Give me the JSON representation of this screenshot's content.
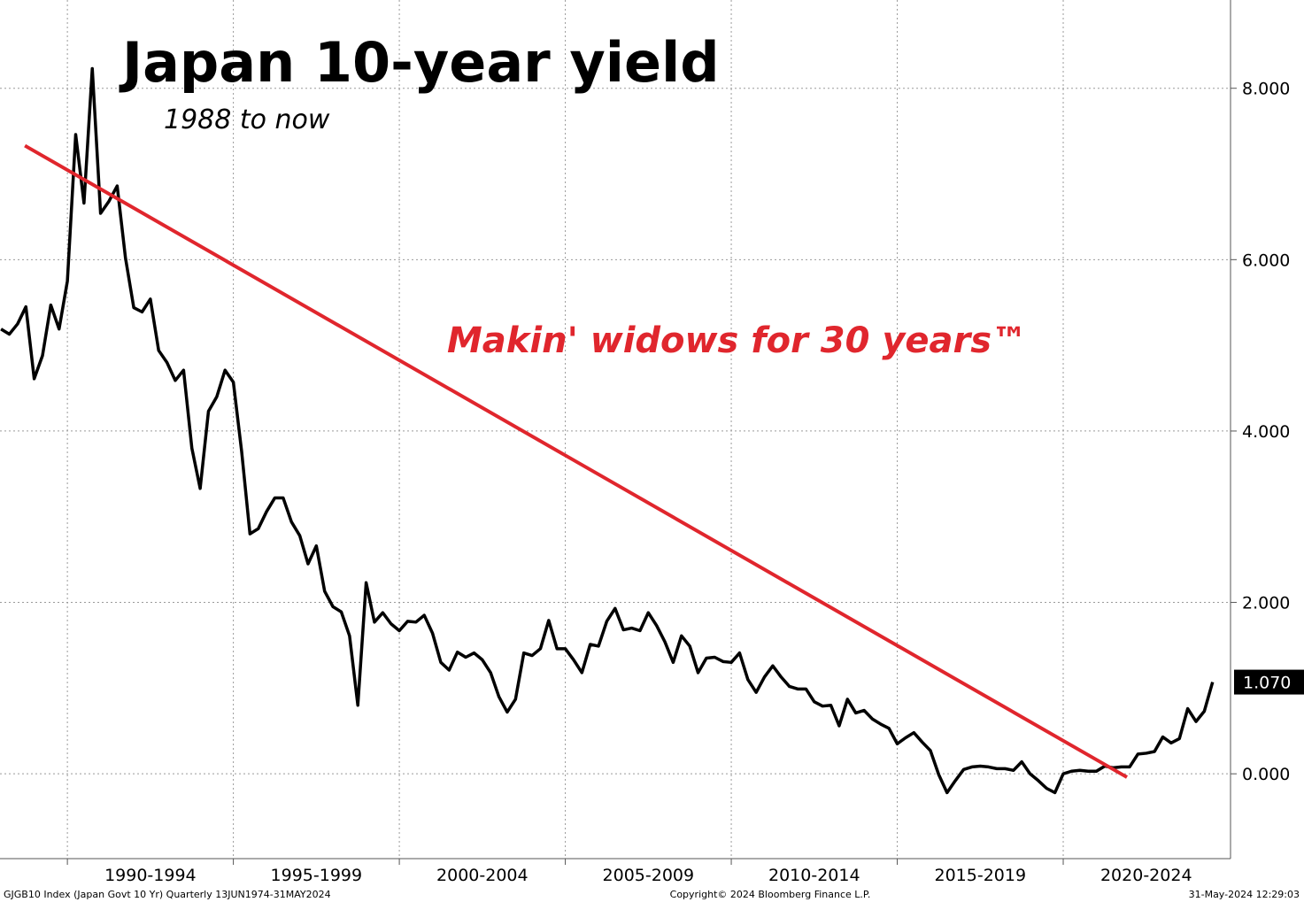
{
  "chart_data": {
    "type": "line",
    "title": "Japan 10-year yield",
    "subtitle": "1988 to now",
    "annotation": "Makin' widows for 30 years™",
    "footer_left": "GJGB10 Index (Japan Govt 10 Yr)  Quarterly 13JUN1974-31MAY2024",
    "footer_center": "Copyright© 2024 Bloomberg Finance L.P.",
    "footer_right": "31-May-2024 12:29:03",
    "xlim": [
      1987.97,
      2025.04
    ],
    "ylim": [
      -0.99,
      9.03
    ],
    "xticks": [
      {
        "value": 1990,
        "label": "1990-1994"
      },
      {
        "value": 1995,
        "label": "1995-1999"
      },
      {
        "value": 2000,
        "label": "2000-2004"
      },
      {
        "value": 2005,
        "label": "2005-2009"
      },
      {
        "value": 2010,
        "label": "2010-2014"
      },
      {
        "value": 2015,
        "label": "2015-2019"
      },
      {
        "value": 2020,
        "label": "2020-2024"
      }
    ],
    "yticks": [
      {
        "value": 0,
        "label": "0.000"
      },
      {
        "value": 2,
        "label": "2.000"
      },
      {
        "value": 4,
        "label": "4.000"
      },
      {
        "value": 6,
        "label": "6.000"
      },
      {
        "value": 8,
        "label": "8.000"
      }
    ],
    "grid": true,
    "x": [
      1988,
      1988.25,
      1988.5,
      1988.75,
      1989,
      1989.25,
      1989.5,
      1989.75,
      1990,
      1990.25,
      1990.5,
      1990.75,
      1991,
      1991.25,
      1991.5,
      1991.75,
      1992,
      1992.25,
      1992.5,
      1992.75,
      1993,
      1993.25,
      1993.5,
      1993.75,
      1994,
      1994.25,
      1994.5,
      1994.75,
      1995,
      1995.25,
      1995.5,
      1995.75,
      1996,
      1996.25,
      1996.5,
      1996.75,
      1997,
      1997.25,
      1997.5,
      1997.75,
      1998,
      1998.25,
      1998.5,
      1998.75,
      1999,
      1999.25,
      1999.5,
      1999.75,
      2000,
      2000.25,
      2000.5,
      2000.75,
      2001,
      2001.25,
      2001.5,
      2001.75,
      2002,
      2002.25,
      2002.5,
      2002.75,
      2003,
      2003.25,
      2003.5,
      2003.75,
      2004,
      2004.25,
      2004.5,
      2004.75,
      2005,
      2005.25,
      2005.5,
      2005.75,
      2006,
      2006.25,
      2006.5,
      2006.75,
      2007,
      2007.25,
      2007.5,
      2007.75,
      2008,
      2008.25,
      2008.5,
      2008.75,
      2009,
      2009.25,
      2009.5,
      2009.75,
      2010,
      2010.25,
      2010.5,
      2010.75,
      2011,
      2011.25,
      2011.5,
      2011.75,
      2012,
      2012.25,
      2012.5,
      2012.75,
      2013,
      2013.25,
      2013.5,
      2013.75,
      2014,
      2014.25,
      2014.5,
      2014.75,
      2015,
      2015.25,
      2015.5,
      2015.75,
      2016,
      2016.25,
      2016.5,
      2016.75,
      2017,
      2017.25,
      2017.5,
      2017.75,
      2018,
      2018.25,
      2018.5,
      2018.75,
      2019,
      2019.25,
      2019.5,
      2019.75,
      2020,
      2020.25,
      2020.5,
      2020.75,
      2021,
      2021.25,
      2021.5,
      2021.75,
      2022,
      2022.25,
      2022.5,
      2022.75,
      2023,
      2023.25,
      2023.5,
      2023.75,
      2024,
      2024.25,
      2024.5
    ],
    "series": [
      {
        "name": "GJGB10 Index",
        "color": "#000000",
        "last_value_label": "1.070",
        "values": [
          5.19,
          5.13,
          5.25,
          5.45,
          4.61,
          4.88,
          5.47,
          5.19,
          5.75,
          7.46,
          6.66,
          8.23,
          6.54,
          6.68,
          6.86,
          6.02,
          5.44,
          5.39,
          5.54,
          4.94,
          4.8,
          4.59,
          4.71,
          3.8,
          3.33,
          4.23,
          4.4,
          4.71,
          4.57,
          3.76,
          2.8,
          2.86,
          3.06,
          3.22,
          3.22,
          2.94,
          2.78,
          2.45,
          2.66,
          2.13,
          1.95,
          1.89,
          1.61,
          0.8,
          2.23,
          1.77,
          1.88,
          1.75,
          1.67,
          1.78,
          1.77,
          1.85,
          1.64,
          1.3,
          1.21,
          1.42,
          1.36,
          1.41,
          1.33,
          1.18,
          0.9,
          0.72,
          0.87,
          1.41,
          1.38,
          1.46,
          1.79,
          1.46,
          1.46,
          1.33,
          1.18,
          1.51,
          1.49,
          1.78,
          1.93,
          1.68,
          1.7,
          1.67,
          1.88,
          1.73,
          1.54,
          1.3,
          1.61,
          1.49,
          1.18,
          1.35,
          1.36,
          1.31,
          1.3,
          1.41,
          1.1,
          0.95,
          1.13,
          1.26,
          1.13,
          1.02,
          0.99,
          0.99,
          0.84,
          0.79,
          0.8,
          0.56,
          0.87,
          0.71,
          0.74,
          0.64,
          0.58,
          0.53,
          0.35,
          0.42,
          0.48,
          0.37,
          0.27,
          -0.01,
          -0.22,
          -0.08,
          0.05,
          0.08,
          0.09,
          0.08,
          0.06,
          0.06,
          0.04,
          0.14,
          0.0,
          -0.08,
          -0.17,
          -0.22,
          0.0,
          0.03,
          0.04,
          0.03,
          0.03,
          0.09,
          0.07,
          0.08,
          0.08,
          0.23,
          0.24,
          0.26,
          0.43,
          0.36,
          0.41,
          0.76,
          0.61,
          0.73,
          1.07
        ]
      }
    ],
    "trend_line": {
      "color": "#e0262d",
      "x": [
        1988.72,
        2021.92
      ],
      "values": [
        7.33,
        -0.04
      ]
    }
  }
}
